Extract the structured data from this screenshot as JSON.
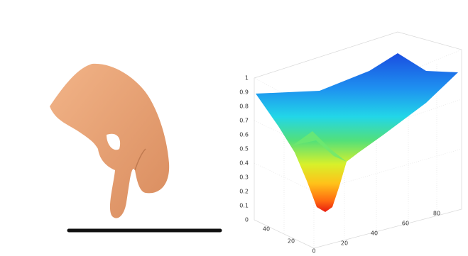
{
  "plot": {
    "z_ticks": [
      "1",
      "0.9",
      "0.8",
      "0.7",
      "0.6",
      "0.5",
      "0.4",
      "0.3",
      "0.2",
      "0.1",
      "0"
    ],
    "y_ticks": [
      "40",
      "20",
      "0"
    ],
    "x_ticks": [
      "20",
      "40",
      "60",
      "80"
    ]
  }
}
